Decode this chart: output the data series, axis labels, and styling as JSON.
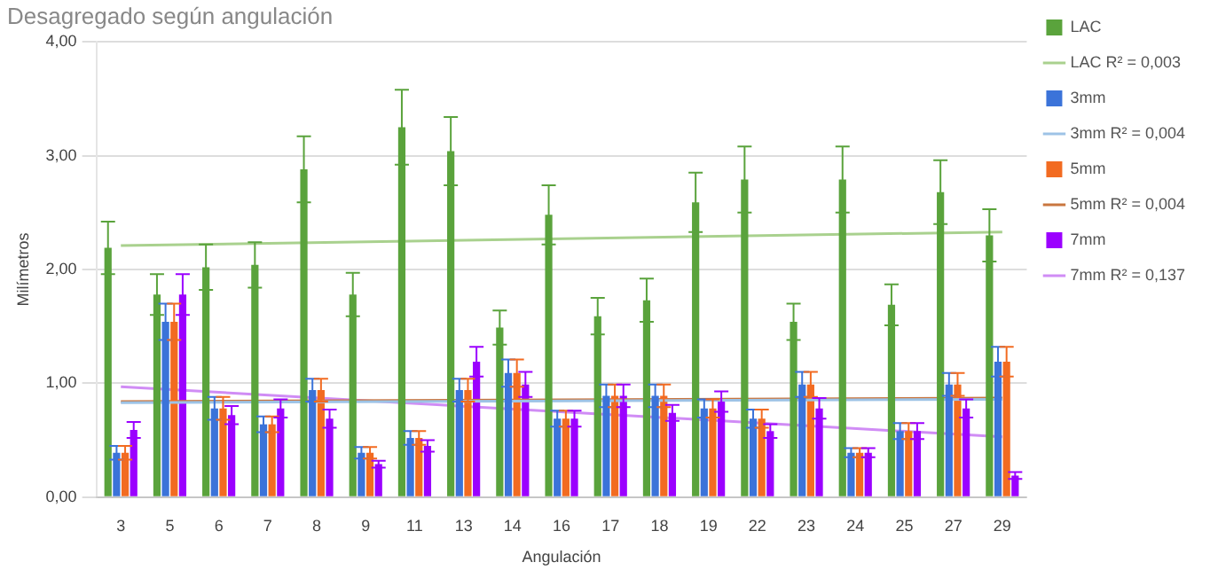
{
  "chart_data": {
    "type": "bar",
    "title": "Desagregado según angulación",
    "xlabel": "Angulación",
    "ylabel": "Milímetros",
    "categories": [
      "3",
      "5",
      "6",
      "7",
      "8",
      "9",
      "11",
      "13",
      "14",
      "16",
      "17",
      "18",
      "19",
      "22",
      "23",
      "24",
      "25",
      "27",
      "29"
    ],
    "series": [
      {
        "name": "LAC",
        "color": "#5aa33c",
        "values": [
          2.19,
          1.78,
          2.02,
          2.04,
          2.88,
          1.78,
          3.25,
          3.04,
          1.49,
          2.48,
          1.59,
          1.73,
          2.59,
          2.79,
          1.54,
          2.79,
          1.69,
          2.68,
          2.3
        ],
        "errors": [
          0.23,
          0.18,
          0.2,
          0.2,
          0.29,
          0.19,
          0.33,
          0.3,
          0.15,
          0.26,
          0.16,
          0.19,
          0.26,
          0.29,
          0.16,
          0.29,
          0.18,
          0.28,
          0.23
        ]
      },
      {
        "name": "LAC R² = 0,003",
        "type": "line",
        "color": "#a9d18e",
        "values": [
          2.21,
          null,
          null,
          null,
          null,
          null,
          null,
          null,
          null,
          null,
          null,
          null,
          null,
          null,
          null,
          null,
          null,
          null,
          2.33
        ]
      },
      {
        "name": "3mm",
        "color": "#3b73d9",
        "values": [
          0.39,
          1.54,
          0.78,
          0.64,
          0.94,
          0.39,
          0.52,
          0.94,
          1.09,
          0.69,
          0.89,
          0.89,
          0.78,
          0.69,
          0.99,
          0.39,
          0.58,
          0.99,
          1.19
        ],
        "errors": [
          0.06,
          0.16,
          0.1,
          0.07,
          0.1,
          0.05,
          0.06,
          0.1,
          0.12,
          0.07,
          0.1,
          0.1,
          0.08,
          0.08,
          0.11,
          0.04,
          0.07,
          0.1,
          0.13
        ]
      },
      {
        "name": "3mm R² = 0,004",
        "type": "line",
        "color": "#9dc3e6",
        "values": [
          0.83,
          null,
          null,
          null,
          null,
          null,
          null,
          null,
          null,
          null,
          null,
          null,
          null,
          null,
          null,
          null,
          null,
          null,
          0.86
        ]
      },
      {
        "name": "5mm",
        "color": "#f26b21",
        "values": [
          0.39,
          1.54,
          0.78,
          0.64,
          0.94,
          0.39,
          0.52,
          0.94,
          1.09,
          0.69,
          0.89,
          0.89,
          0.78,
          0.69,
          0.99,
          0.39,
          0.58,
          0.99,
          1.19
        ],
        "errors": [
          0.06,
          0.16,
          0.1,
          0.07,
          0.1,
          0.05,
          0.06,
          0.1,
          0.12,
          0.07,
          0.1,
          0.1,
          0.08,
          0.08,
          0.11,
          0.04,
          0.07,
          0.1,
          0.13
        ]
      },
      {
        "name": "5mm R² = 0,004",
        "type": "line",
        "color": "#c9763f",
        "values": [
          0.84,
          null,
          null,
          null,
          null,
          null,
          null,
          null,
          null,
          null,
          null,
          null,
          null,
          null,
          null,
          null,
          null,
          null,
          0.87
        ]
      },
      {
        "name": "7mm",
        "color": "#9b00ff",
        "values": [
          0.59,
          1.78,
          0.72,
          0.78,
          0.69,
          0.29,
          0.45,
          1.19,
          0.99,
          0.69,
          0.89,
          0.74,
          0.84,
          0.58,
          0.78,
          0.39,
          0.58,
          0.78,
          0.19
        ],
        "errors": [
          0.07,
          0.18,
          0.08,
          0.08,
          0.08,
          0.03,
          0.05,
          0.13,
          0.11,
          0.07,
          0.1,
          0.07,
          0.09,
          0.06,
          0.09,
          0.04,
          0.07,
          0.08,
          0.03
        ]
      },
      {
        "name": "7mm R² = 0,137",
        "type": "line",
        "color": "#d08cf5",
        "values": [
          0.97,
          null,
          null,
          null,
          null,
          null,
          null,
          null,
          null,
          null,
          null,
          null,
          null,
          null,
          null,
          null,
          null,
          null,
          0.53
        ]
      }
    ],
    "ylim": [
      0,
      4
    ],
    "yticks": [
      {
        "value": 0,
        "label": "0,00"
      },
      {
        "value": 1,
        "label": "1,00"
      },
      {
        "value": 2,
        "label": "2,00"
      },
      {
        "value": 3,
        "label": "3,00"
      },
      {
        "value": 4,
        "label": "4,00"
      }
    ],
    "grid": "y",
    "legend": "right"
  }
}
